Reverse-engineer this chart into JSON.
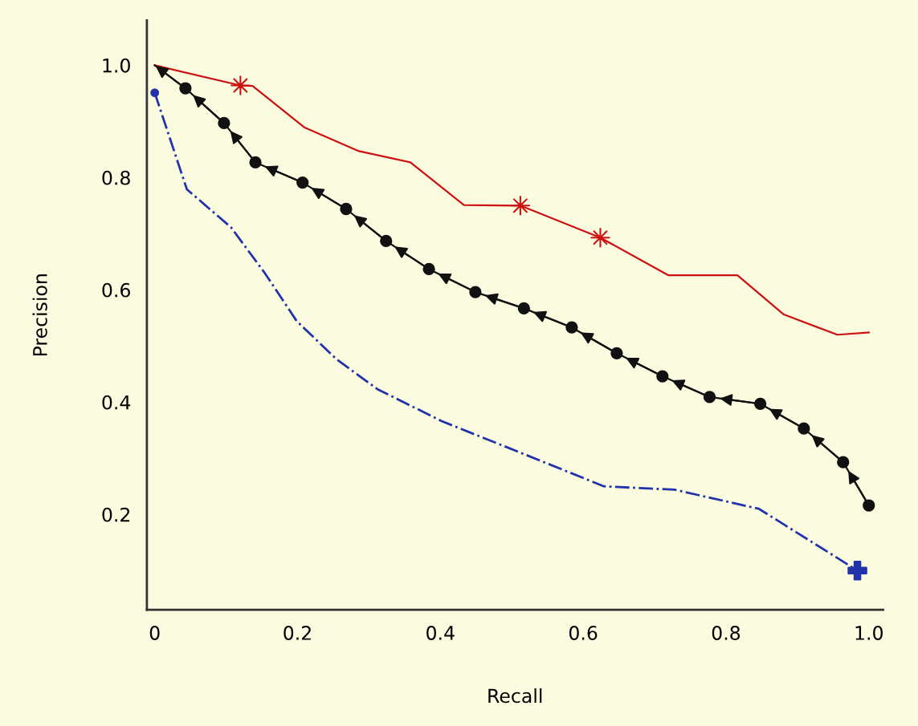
{
  "chart_data": {
    "type": "line",
    "xlabel": "Recall",
    "ylabel": "Precision",
    "xlim": [
      -0.011,
      1.02
    ],
    "ylim": [
      0.03,
      1.08
    ],
    "xticks": [
      {
        "value": 0,
        "label": "0"
      },
      0.2,
      0.4,
      0.6,
      0.8,
      {
        "value": 1,
        "label": "1.0"
      }
    ],
    "yticks": [
      0.2,
      0.4,
      0.6,
      0.8,
      {
        "value": 1,
        "label": "1.0"
      }
    ],
    "grid": false,
    "legend": false,
    "series": [
      {
        "type": "line",
        "color": "#cc1111",
        "marker": "none",
        "line_style": "solid",
        "x": [
          0.0,
          0.12,
          0.137,
          0.21,
          0.286,
          0.358,
          0.433,
          0.512,
          0.624,
          0.719,
          0.816,
          0.881,
          0.956,
          1.0
        ],
        "values": [
          1.0,
          0.964,
          0.963,
          0.889,
          0.847,
          0.827,
          0.751,
          0.75,
          0.693,
          0.626,
          0.626,
          0.556,
          0.52,
          0.524
        ]
      },
      {
        "type": "scatter",
        "color": "#cc1111",
        "marker": "star",
        "x": [
          0.12,
          0.512,
          0.624
        ],
        "values": [
          0.964,
          0.75,
          0.693
        ]
      },
      {
        "type": "line",
        "color": "#111111",
        "marker": "circle",
        "line_style": "solid",
        "x": [
          0.0,
          0.043,
          0.097,
          0.141,
          0.207,
          0.268,
          0.324,
          0.384,
          0.449,
          0.517,
          0.584,
          0.647,
          0.711,
          0.777,
          0.848,
          0.909,
          0.964,
          1.0
        ],
        "values": [
          1.0,
          0.959,
          0.897,
          0.827,
          0.791,
          0.744,
          0.687,
          0.637,
          0.596,
          0.567,
          0.533,
          0.487,
          0.446,
          0.409,
          0.397,
          0.353,
          0.293,
          0.216
        ]
      },
      {
        "type": "line",
        "color": "#2233aa",
        "marker": "none",
        "line_style": "dashdot",
        "x": [
          0.0,
          0.045,
          0.107,
          0.154,
          0.199,
          0.255,
          0.312,
          0.402,
          0.514,
          0.629,
          0.728,
          0.846,
          0.984
        ],
        "values": [
          0.951,
          0.779,
          0.711,
          0.63,
          0.544,
          0.476,
          0.423,
          0.366,
          0.309,
          0.25,
          0.244,
          0.21,
          0.1
        ]
      },
      {
        "type": "scatter",
        "color": "#2233aa",
        "marker": "circle",
        "x": [
          0.0
        ],
        "values": [
          0.951
        ]
      },
      {
        "type": "scatter",
        "color": "#2233aa",
        "marker": "cross",
        "x": [
          0.984
        ],
        "values": [
          0.1
        ]
      }
    ]
  }
}
